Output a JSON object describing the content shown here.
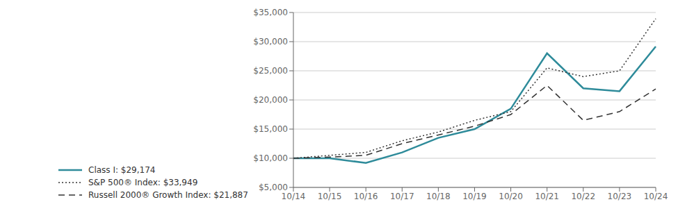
{
  "chart_data": {
    "type": "line",
    "categories": [
      "10/14",
      "10/15",
      "10/16",
      "10/17",
      "10/18",
      "10/19",
      "10/20",
      "10/21",
      "10/22",
      "10/23",
      "10/24"
    ],
    "series": [
      {
        "name": "Class I: $29,174",
        "color": "#2e8b9a",
        "line_style": "solid",
        "values": [
          10000,
          10000,
          9200,
          11000,
          13500,
          15000,
          18500,
          28000,
          22000,
          21500,
          29174
        ]
      },
      {
        "name": "S&P 500® Index: $33,949",
        "color": "#333333",
        "line_style": "dotted",
        "values": [
          10000,
          10500,
          11000,
          13000,
          14500,
          16500,
          18000,
          25500,
          24000,
          25000,
          33949
        ]
      },
      {
        "name": "Russell 2000® Growth Index: $21,887",
        "color": "#333333",
        "line_style": "dashed",
        "values": [
          10000,
          10200,
          10500,
          12500,
          14000,
          15500,
          17500,
          22500,
          16500,
          18000,
          21887
        ]
      }
    ],
    "ylim": [
      5000,
      35000
    ],
    "yticks": [
      {
        "value": 5000,
        "label": "$5,000"
      },
      {
        "value": 10000,
        "label": "$10,000"
      },
      {
        "value": 15000,
        "label": "$15,000"
      },
      {
        "value": 20000,
        "label": "$20,000"
      },
      {
        "value": 25000,
        "label": "$25,000"
      },
      {
        "value": 30000,
        "label": "$30,000"
      },
      {
        "value": 35000,
        "label": "$35,000"
      }
    ],
    "grid": true,
    "legend": "bottom"
  }
}
